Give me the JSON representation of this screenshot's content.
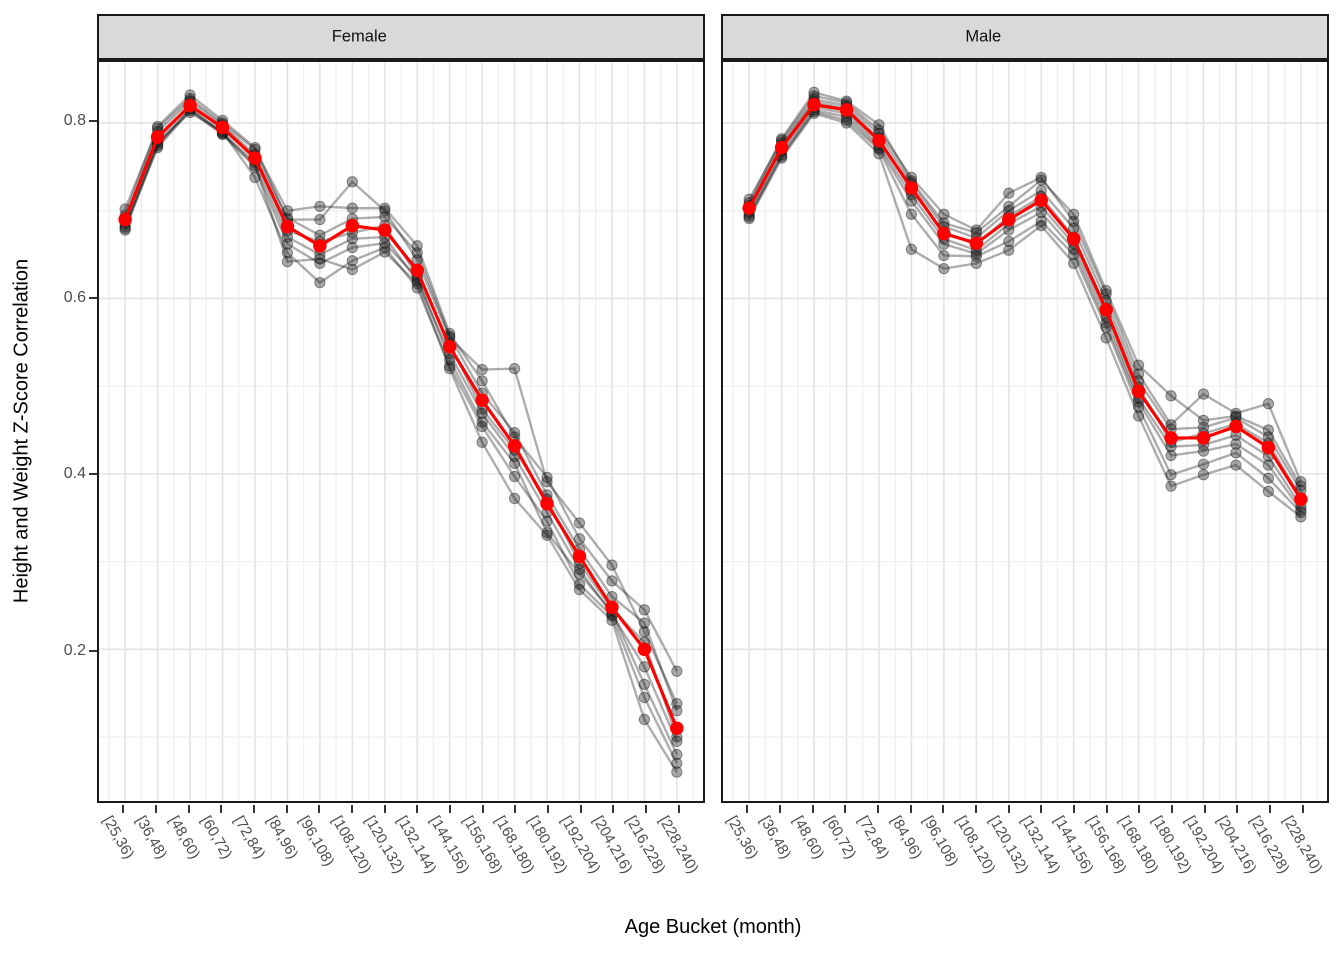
{
  "figure": {
    "y_axis_title": "Height and Weight Z-Score Correlation",
    "x_axis_title": "Age Bucket (month)"
  },
  "chart_data": {
    "type": "line",
    "title": "",
    "xlabel": "Age Bucket (month)",
    "ylabel": "Height and Weight Z-Score Correlation",
    "grid": "on",
    "legend": "none",
    "ylim": [
      0.03,
      0.87
    ],
    "y_ticks": [
      {
        "label": "0.8",
        "value": 0.8
      },
      {
        "label": "0.6",
        "value": 0.6
      },
      {
        "label": "0.4",
        "value": 0.4
      },
      {
        "label": "0.2",
        "value": 0.2
      }
    ],
    "y_minor_gridlines": [
      0.1,
      0.3,
      0.5,
      0.7
    ],
    "y_major_gridlines": [
      0.2,
      0.4,
      0.6,
      0.8
    ],
    "categories": [
      "[25,36)",
      "[36,48)",
      "[48,60)",
      "[60,72)",
      "[72,84)",
      "[84,96)",
      "[96,108)",
      "[108,120)",
      "[120,132)",
      "[132,144)",
      "[144,156)",
      "[156,168)",
      "[168,180)",
      "[180,192)",
      "[192,204)",
      "[204,216)",
      "[216,228)",
      "[228,240)"
    ],
    "colors": {
      "mean_line": "#FF0000",
      "replicate_line": "#000000",
      "replicate_opacity": 0.32,
      "grid_major": "#E3E3E3",
      "grid_minor": "#EFEFEF",
      "strip_background": "#D9D9D9",
      "panel_border": "#1A1A1A",
      "tick_label": "#4D4D4D"
    },
    "facets": [
      {
        "label": "Female",
        "mean_series": {
          "name": "mean",
          "values": [
            0.69,
            0.784,
            0.82,
            0.795,
            0.76,
            0.682,
            0.66,
            0.683,
            0.678,
            0.632,
            0.545,
            0.484,
            0.432,
            0.366,
            0.306,
            0.248,
            0.2,
            0.11
          ]
        },
        "gray_series": [
          {
            "name": "replicate-1",
            "values": [
              0.702,
              0.794,
              0.828,
              0.8,
              0.77,
              0.7,
              0.705,
              0.703,
              0.703,
              0.66,
              0.56,
              0.506,
              0.442,
              0.396,
              0.326,
              0.278,
              0.245,
              0.175
            ]
          },
          {
            "name": "replicate-2",
            "values": [
              0.695,
              0.796,
              0.832,
              0.803,
              0.772,
              0.69,
              0.69,
              0.733,
              0.7,
              0.644,
              0.555,
              0.519,
              0.52,
              0.391,
              0.344,
              0.296,
              0.22,
              0.138
            ]
          },
          {
            "name": "replicate-3",
            "values": [
              0.688,
              0.79,
              0.825,
              0.798,
              0.764,
              0.692,
              0.672,
              0.691,
              0.693,
              0.652,
              0.557,
              0.492,
              0.447,
              0.376,
              0.314,
              0.26,
              0.23,
              0.13
            ]
          },
          {
            "name": "replicate-4",
            "values": [
              0.692,
              0.78,
              0.822,
              0.792,
              0.762,
              0.677,
              0.665,
              0.675,
              0.683,
              0.626,
              0.548,
              0.474,
              0.427,
              0.371,
              0.298,
              0.246,
              0.208,
              0.1
            ]
          },
          {
            "name": "replicate-5",
            "values": [
              0.685,
              0.776,
              0.817,
              0.789,
              0.755,
              0.67,
              0.65,
              0.668,
              0.67,
              0.62,
              0.537,
              0.469,
              0.42,
              0.356,
              0.291,
              0.24,
              0.18,
              0.095
            ]
          },
          {
            "name": "replicate-6",
            "values": [
              0.682,
              0.772,
              0.814,
              0.787,
              0.75,
              0.662,
              0.64,
              0.658,
              0.663,
              0.624,
              0.53,
              0.459,
              0.412,
              0.333,
              0.286,
              0.243,
              0.16,
              0.08
            ]
          },
          {
            "name": "replicate-7",
            "values": [
              0.68,
              0.778,
              0.812,
              0.79,
              0.738,
              0.652,
              0.618,
              0.643,
              0.658,
              0.612,
              0.523,
              0.454,
              0.397,
              0.346,
              0.274,
              0.238,
              0.145,
              0.07
            ]
          },
          {
            "name": "replicate-8",
            "values": [
              0.678,
              0.774,
              0.816,
              0.788,
              0.752,
              0.642,
              0.645,
              0.633,
              0.653,
              0.617,
              0.52,
              0.436,
              0.372,
              0.33,
              0.268,
              0.233,
              0.12,
              0.06
            ]
          }
        ]
      },
      {
        "label": "Male",
        "mean_series": {
          "name": "mean",
          "values": [
            0.703,
            0.772,
            0.821,
            0.815,
            0.78,
            0.726,
            0.674,
            0.663,
            0.69,
            0.712,
            0.668,
            0.587,
            0.494,
            0.441,
            0.441,
            0.454,
            0.43,
            0.371
          ]
        },
        "gray_series": [
          {
            "name": "replicate-1",
            "values": [
              0.713,
              0.78,
              0.831,
              0.823,
              0.792,
              0.738,
              0.696,
              0.678,
              0.72,
              0.738,
              0.688,
              0.605,
              0.514,
              0.456,
              0.491,
              0.469,
              0.48,
              0.391
            ]
          },
          {
            "name": "replicate-2",
            "values": [
              0.709,
              0.782,
              0.835,
              0.825,
              0.798,
              0.734,
              0.686,
              0.675,
              0.705,
              0.735,
              0.696,
              0.609,
              0.524,
              0.489,
              0.461,
              0.466,
              0.45,
              0.386
            ]
          },
          {
            "name": "replicate-3",
            "values": [
              0.706,
              0.777,
              0.827,
              0.82,
              0.788,
              0.731,
              0.682,
              0.669,
              0.7,
              0.723,
              0.68,
              0.597,
              0.506,
              0.451,
              0.453,
              0.464,
              0.442,
              0.381
            ]
          },
          {
            "name": "replicate-4",
            "values": [
              0.701,
              0.774,
              0.824,
              0.817,
              0.783,
              0.723,
              0.676,
              0.661,
              0.694,
              0.716,
              0.67,
              0.589,
              0.499,
              0.436,
              0.446,
              0.457,
              0.435,
              0.373
            ]
          },
          {
            "name": "replicate-5",
            "values": [
              0.698,
              0.768,
              0.818,
              0.811,
              0.775,
              0.718,
              0.668,
              0.655,
              0.685,
              0.705,
              0.662,
              0.579,
              0.486,
              0.431,
              0.433,
              0.444,
              0.42,
              0.363
            ]
          },
          {
            "name": "replicate-6",
            "values": [
              0.695,
              0.764,
              0.815,
              0.807,
              0.772,
              0.711,
              0.662,
              0.651,
              0.678,
              0.698,
              0.656,
              0.572,
              0.482,
              0.421,
              0.426,
              0.434,
              0.41,
              0.359
            ]
          },
          {
            "name": "replicate-7",
            "values": [
              0.693,
              0.762,
              0.813,
              0.803,
              0.77,
              0.696,
              0.649,
              0.648,
              0.665,
              0.688,
              0.65,
              0.567,
              0.476,
              0.399,
              0.411,
              0.424,
              0.395,
              0.356
            ]
          },
          {
            "name": "replicate-8",
            "values": [
              0.691,
              0.76,
              0.811,
              0.8,
              0.765,
              0.656,
              0.634,
              0.64,
              0.655,
              0.683,
              0.64,
              0.555,
              0.466,
              0.386,
              0.399,
              0.41,
              0.38,
              0.351
            ]
          }
        ]
      }
    ]
  }
}
